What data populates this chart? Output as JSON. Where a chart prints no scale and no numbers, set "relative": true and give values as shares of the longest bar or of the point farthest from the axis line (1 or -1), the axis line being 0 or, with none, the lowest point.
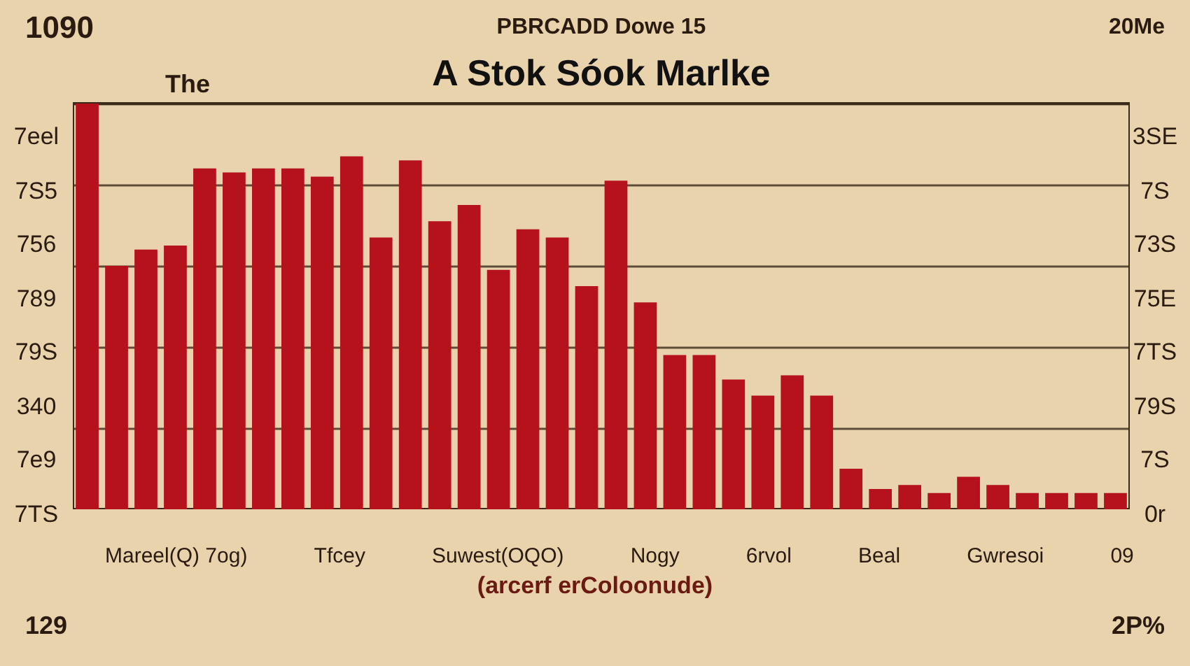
{
  "chart_data": {
    "type": "bar",
    "title": "A Stok Sóok Marlke",
    "xlabel": "(arcerf erColoonude)",
    "relative": true,
    "grid": true,
    "color": "#b5121b",
    "categories": [
      null,
      null,
      null,
      null,
      null,
      null,
      null,
      null,
      null,
      null,
      null,
      null,
      null,
      null,
      null,
      null,
      null,
      null,
      null,
      null,
      null,
      null,
      null,
      null,
      null,
      null,
      null,
      null,
      null,
      null,
      null,
      null,
      null,
      null,
      null,
      null
    ],
    "values": [
      1.0,
      0.6,
      0.64,
      0.65,
      0.84,
      0.83,
      0.84,
      0.84,
      0.82,
      0.87,
      0.67,
      0.86,
      0.71,
      0.75,
      0.59,
      0.69,
      0.67,
      0.55,
      0.81,
      0.51,
      0.38,
      0.38,
      0.32,
      0.28,
      0.33,
      0.28,
      0.1,
      0.05,
      0.06,
      0.04,
      0.08,
      0.06,
      0.04,
      0.04,
      0.04,
      0.04
    ],
    "annotations": [
      "1090",
      "PBRCADD Dowe 15",
      "20Ме",
      "The",
      "7eel",
      "7S5",
      "756",
      "789",
      "79S",
      "340",
      "7e9",
      "7TS",
      "3SE",
      "7S",
      "73S",
      "75E",
      "7TS",
      "79S",
      "7S",
      "0r",
      "Mareel(Q) 7oɡ)",
      "Tfcey",
      "Suwest(OQO)",
      "Noɡy",
      "6rvol",
      "Beal",
      "Gwresoi",
      "09",
      "129",
      "2P%"
    ]
  }
}
